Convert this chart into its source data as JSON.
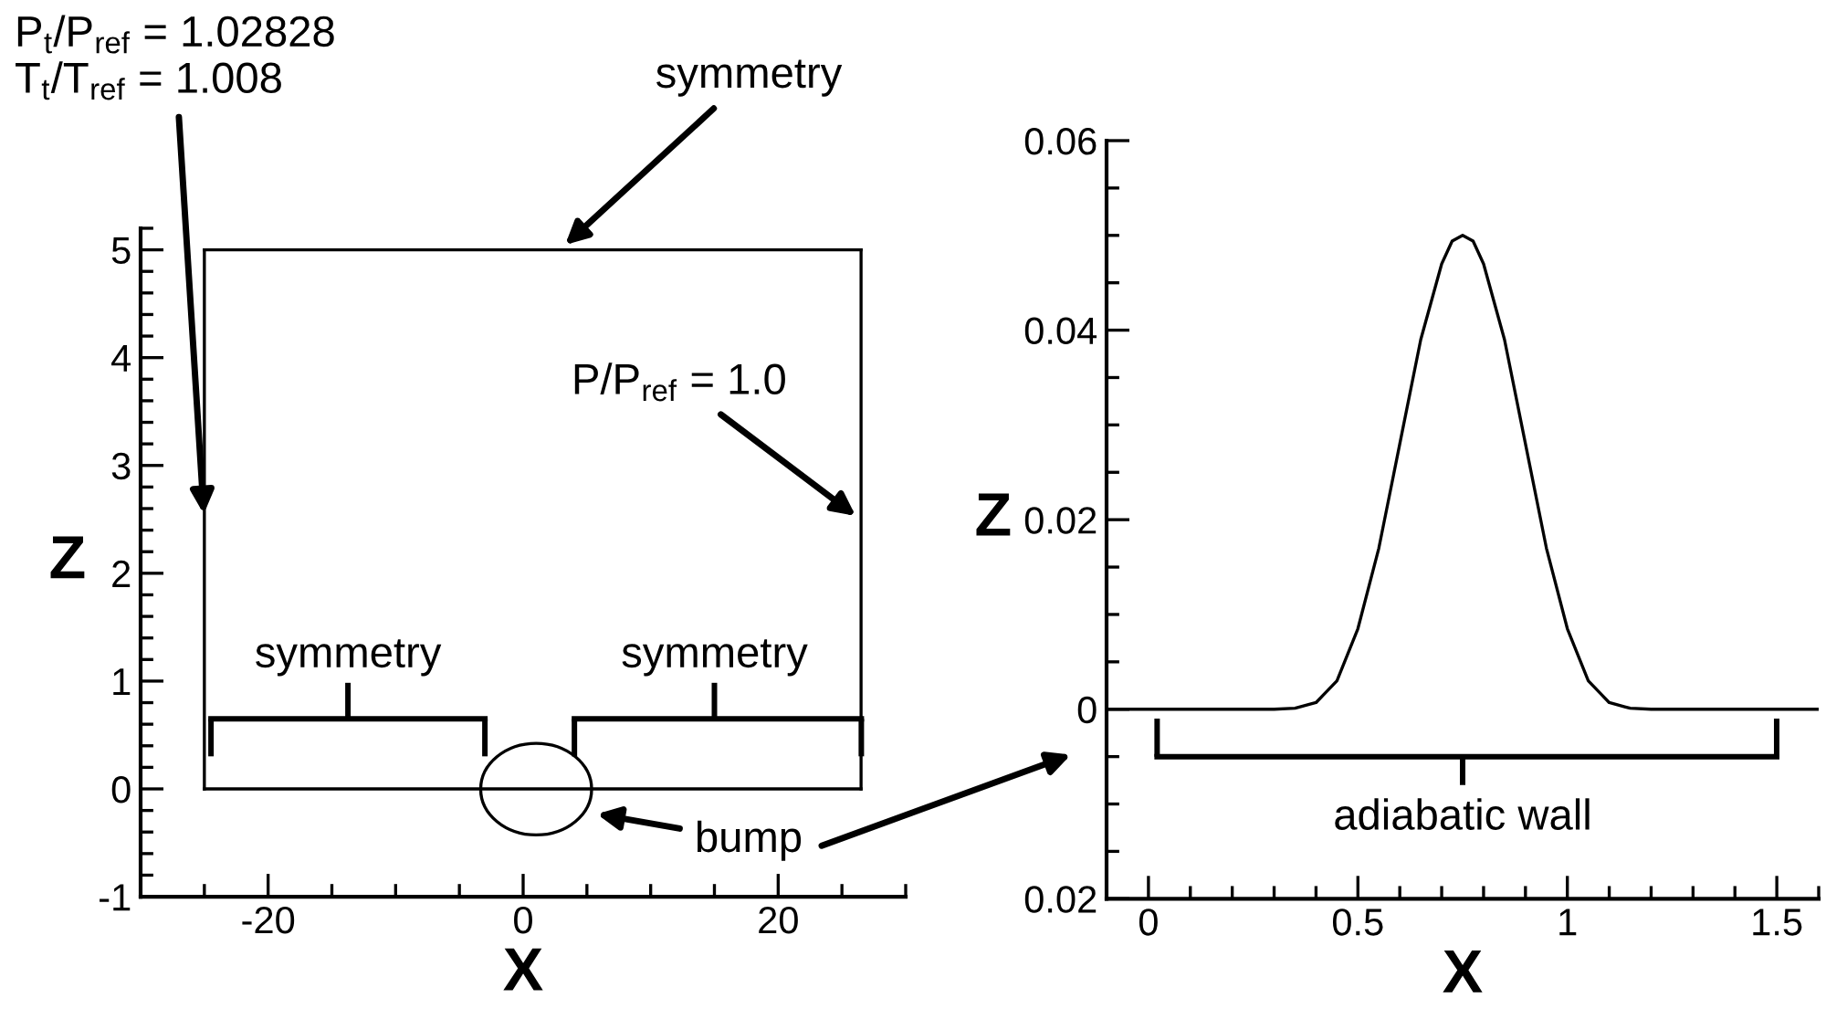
{
  "chart_data": [
    {
      "type": "line",
      "xlabel": "X",
      "ylabel": "Z",
      "xlim": [
        -30,
        30
      ],
      "ylim": [
        -1,
        5.2
      ],
      "xticks": [
        -20,
        0,
        20
      ],
      "yticks": [
        -1,
        0,
        1,
        2,
        3,
        4,
        5
      ],
      "grid": false,
      "legend": false,
      "x": [
        -25,
        26.5
      ],
      "ref_lines": [
        {
          "axis": "x",
          "value": -25
        },
        {
          "axis": "x",
          "value": 26.5
        }
      ],
      "series": [
        {
          "color": "#000000",
          "values": [
            0,
            0
          ]
        },
        {
          "color": "#000000",
          "values": [
            5,
            5
          ]
        }
      ],
      "annotations": [
        "P$_{t}$/P$_{ref}$ = 1.02828\nT$_{t}$/T$_{ref}$ = 1.008",
        "symmetry",
        "P/P$_{ref}$ = 1.0",
        "symmetry",
        "symmetry",
        "bump"
      ]
    },
    {
      "type": "line",
      "xlabel": "X",
      "ylabel": "Z",
      "xlim": [
        -0.1,
        1.6
      ],
      "ylim": [
        -0.02,
        0.06
      ],
      "xticks": [
        0,
        0.5,
        1,
        1.5
      ],
      "yticks": [
        {
          "value": -0.02,
          "label": "0.02"
        },
        0,
        0.02,
        0.04,
        0.06
      ],
      "grid": false,
      "legend": false,
      "x": [
        -0.1,
        0,
        0.3,
        0.35,
        0.4,
        0.45,
        0.5,
        0.55,
        0.6,
        0.65,
        0.7,
        0.725,
        0.75,
        0.775,
        0.8,
        0.85,
        0.9,
        0.95,
        1.0,
        1.05,
        1.1,
        1.15,
        1.2,
        1.5,
        1.6
      ],
      "series": [
        {
          "color": "#000000",
          "values": [
            0,
            0,
            0,
            0.0001,
            0.0007,
            0.003,
            0.0085,
            0.017,
            0.028,
            0.039,
            0.047,
            0.0494,
            0.05,
            0.0494,
            0.047,
            0.039,
            0.028,
            0.017,
            0.0085,
            0.003,
            0.0007,
            0.0001,
            0,
            0,
            0
          ]
        }
      ],
      "annotations": [
        "adiabatic wall"
      ]
    }
  ]
}
